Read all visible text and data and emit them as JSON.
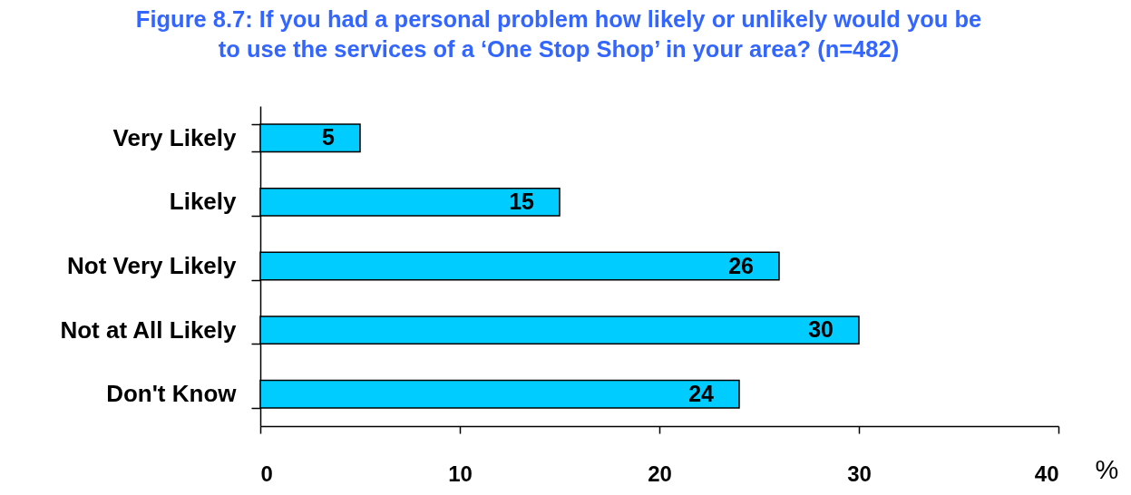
{
  "chart_data": {
    "type": "bar",
    "orientation": "horizontal",
    "title": "Figure 8.7: If you had a personal problem how likely or unlikely would you be\nto use the services of a ‘One Stop Shop’ in your area? (n=482)",
    "xlabel": "%",
    "categories": [
      "Very Likely",
      "Likely",
      "Not Very Likely",
      "Not at All Likely",
      "Don't Know"
    ],
    "values": [
      5,
      15,
      26,
      30,
      24
    ],
    "color": "#00ccff",
    "xlim": [
      0,
      40
    ],
    "xticks": [
      0,
      10,
      20,
      30,
      40
    ],
    "grid": false,
    "data_labels": true
  }
}
